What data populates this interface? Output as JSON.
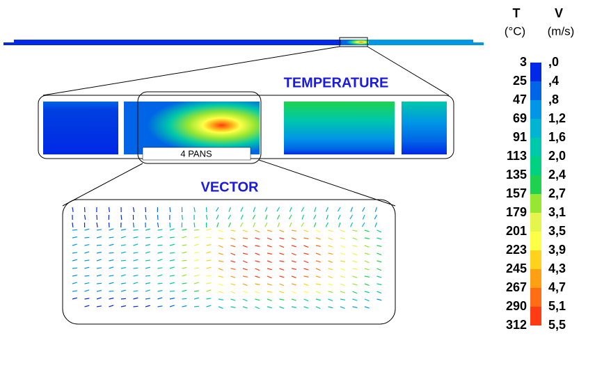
{
  "legend": {
    "t_header": "T",
    "v_header": "V",
    "t_unit": "(°C)",
    "v_unit": "(m/s)",
    "t_labels": [
      "3",
      "25",
      "47",
      "69",
      "91",
      "113",
      "135",
      "157",
      "179",
      "201",
      "223",
      "245",
      "267",
      "290",
      "312"
    ],
    "v_labels": [
      ",0",
      ",4",
      ",8",
      "1,2",
      "1,6",
      "2,0",
      "2,4",
      "2,7",
      "3,1",
      "3,5",
      "3,9",
      "4,3",
      "4,7",
      "5,1",
      "5,5"
    ],
    "colors": [
      "#0028e6",
      "#0064e6",
      "#0096e6",
      "#00b4d2",
      "#00c8aa",
      "#00d282",
      "#1ed250",
      "#96e632",
      "#e6f54b",
      "#ffff46",
      "#ffd21e",
      "#ffa014",
      "#ff6e14",
      "#ff3c14"
    ]
  },
  "labels": {
    "temperature": "TEMPERATURE",
    "vector": "VECTOR",
    "pans": "4   PANS"
  }
}
